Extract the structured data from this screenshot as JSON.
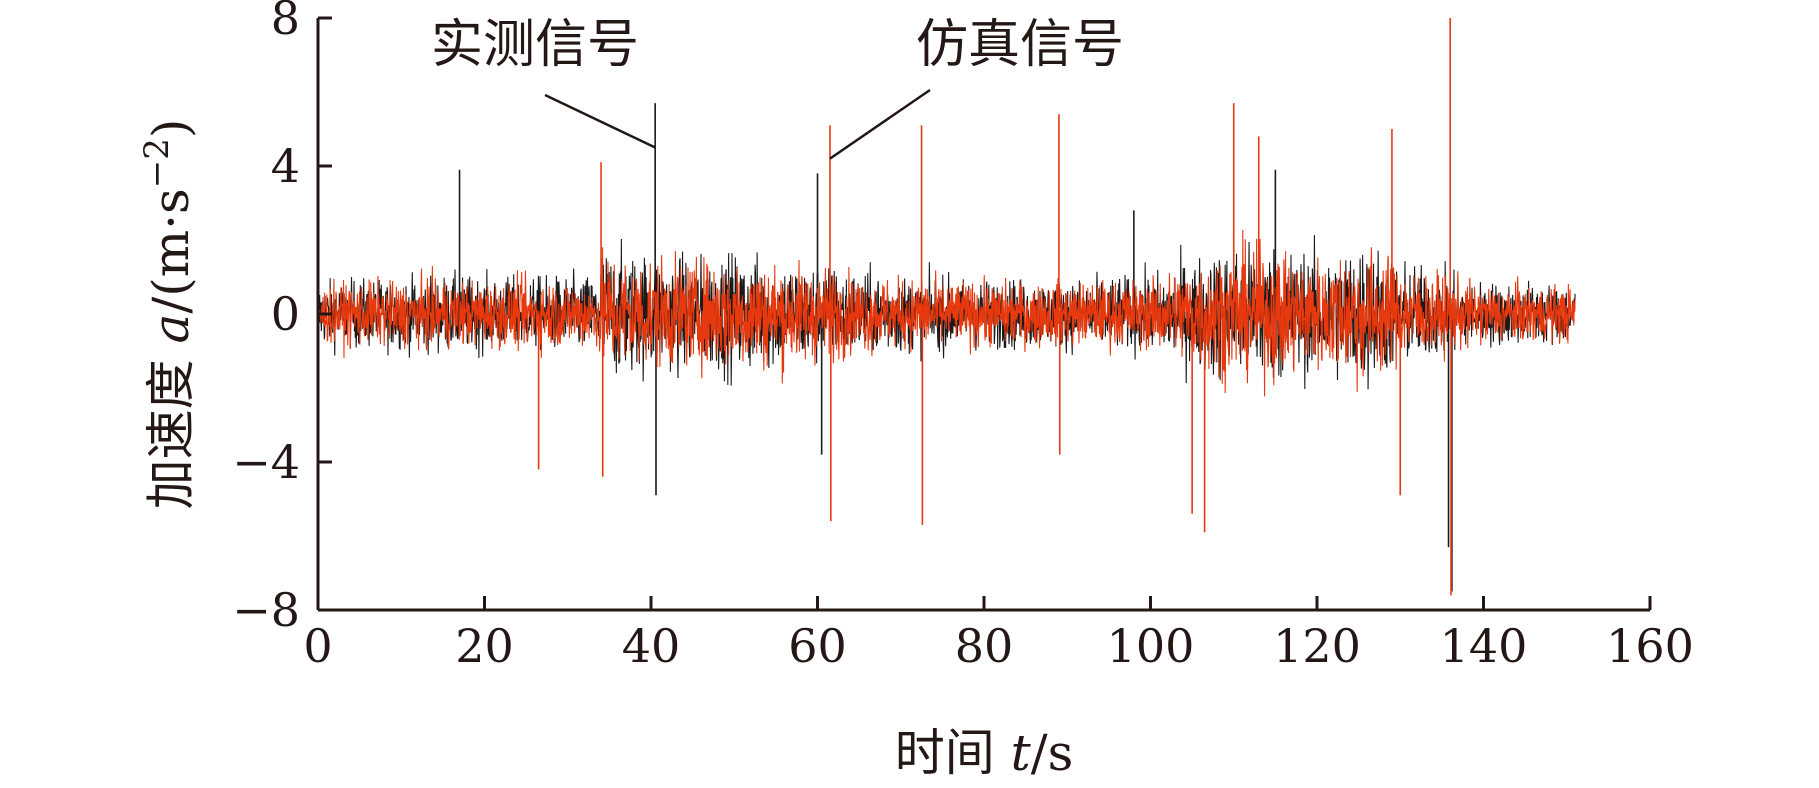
{
  "chart_data": {
    "type": "line",
    "xlabel": "时间 t/s",
    "ylabel": "加速度 a/(m·s⁻²)",
    "xlabel_parts": {
      "prefix": "时间 ",
      "var": "t",
      "suffix": "/s"
    },
    "ylabel_parts": {
      "prefix": "加速度 ",
      "var": "a",
      "suffix": "/(m·s",
      "exp": "−2",
      "close": ")"
    },
    "xlim": [
      0,
      160
    ],
    "ylim": [
      -8,
      8
    ],
    "x_ticks": [
      0,
      20,
      40,
      60,
      80,
      100,
      120,
      140,
      160
    ],
    "x_tick_labels": [
      "0",
      "20",
      "40",
      "60",
      "80",
      "100",
      "120",
      "140",
      "160"
    ],
    "y_ticks": [
      -8,
      -4,
      0,
      4,
      8
    ],
    "y_tick_labels": [
      "−8",
      "−4",
      "0",
      "4",
      "8"
    ],
    "grid": false,
    "series": [
      {
        "name": "实测信号",
        "color": "#1a1a1a",
        "x_range": [
          0,
          151
        ],
        "envelope": [
          {
            "x": 0,
            "a": 1.5
          },
          {
            "x": 5,
            "a": 1.6
          },
          {
            "x": 10,
            "a": 1.6
          },
          {
            "x": 15,
            "a": 1.8
          },
          {
            "x": 20,
            "a": 1.7
          },
          {
            "x": 25,
            "a": 1.7
          },
          {
            "x": 30,
            "a": 1.8
          },
          {
            "x": 33.5,
            "a": 1.8
          },
          {
            "x": 34,
            "a": 3.0
          },
          {
            "x": 40,
            "a": 2.8
          },
          {
            "x": 45,
            "a": 2.6
          },
          {
            "x": 50,
            "a": 2.8
          },
          {
            "x": 55,
            "a": 2.6
          },
          {
            "x": 60,
            "a": 2.4
          },
          {
            "x": 65,
            "a": 2.0
          },
          {
            "x": 70,
            "a": 1.8
          },
          {
            "x": 80,
            "a": 1.6
          },
          {
            "x": 90,
            "a": 1.6
          },
          {
            "x": 100,
            "a": 1.8
          },
          {
            "x": 105,
            "a": 2.6
          },
          {
            "x": 110,
            "a": 3.2
          },
          {
            "x": 115,
            "a": 3.2
          },
          {
            "x": 120,
            "a": 2.8
          },
          {
            "x": 126,
            "a": 3.4
          },
          {
            "x": 130,
            "a": 2.4
          },
          {
            "x": 135,
            "a": 2.0
          },
          {
            "x": 140,
            "a": 1.5
          },
          {
            "x": 151,
            "a": 1.4
          }
        ],
        "spikes": [
          {
            "x": 17,
            "y": 3.9
          },
          {
            "x": 40.5,
            "y": 5.7
          },
          {
            "x": 40.6,
            "y": -4.9
          },
          {
            "x": 60,
            "y": 3.8
          },
          {
            "x": 60.5,
            "y": -3.8
          },
          {
            "x": 98,
            "y": 2.8
          },
          {
            "x": 135.8,
            "y": -6.3
          },
          {
            "x": 136.2,
            "y": -7.5
          },
          {
            "x": 115,
            "y": 3.9
          }
        ]
      },
      {
        "name": "仿真信号",
        "color": "#e8380d",
        "x_range": [
          0,
          151
        ],
        "envelope": [
          {
            "x": 0,
            "a": 1.3
          },
          {
            "x": 5,
            "a": 1.5
          },
          {
            "x": 10,
            "a": 1.5
          },
          {
            "x": 15,
            "a": 1.6
          },
          {
            "x": 20,
            "a": 1.5
          },
          {
            "x": 25,
            "a": 1.6
          },
          {
            "x": 30,
            "a": 1.6
          },
          {
            "x": 33.5,
            "a": 1.6
          },
          {
            "x": 34,
            "a": 2.8
          },
          {
            "x": 40,
            "a": 2.6
          },
          {
            "x": 45,
            "a": 2.4
          },
          {
            "x": 50,
            "a": 2.6
          },
          {
            "x": 55,
            "a": 2.5
          },
          {
            "x": 60,
            "a": 2.2
          },
          {
            "x": 65,
            "a": 1.8
          },
          {
            "x": 70,
            "a": 1.6
          },
          {
            "x": 80,
            "a": 1.5
          },
          {
            "x": 90,
            "a": 1.5
          },
          {
            "x": 100,
            "a": 1.6
          },
          {
            "x": 105,
            "a": 2.4
          },
          {
            "x": 110,
            "a": 3.0
          },
          {
            "x": 115,
            "a": 3.0
          },
          {
            "x": 120,
            "a": 2.6
          },
          {
            "x": 126,
            "a": 3.2
          },
          {
            "x": 130,
            "a": 2.2
          },
          {
            "x": 135,
            "a": 1.8
          },
          {
            "x": 140,
            "a": 1.4
          },
          {
            "x": 151,
            "a": 1.3
          }
        ],
        "spikes": [
          {
            "x": 26.5,
            "y": -4.2
          },
          {
            "x": 34,
            "y": 4.1
          },
          {
            "x": 34.2,
            "y": -4.4
          },
          {
            "x": 61.5,
            "y": 5.1
          },
          {
            "x": 61.6,
            "y": -5.6
          },
          {
            "x": 72.5,
            "y": 5.1
          },
          {
            "x": 72.6,
            "y": -5.7
          },
          {
            "x": 89,
            "y": 5.4
          },
          {
            "x": 89.1,
            "y": -3.8
          },
          {
            "x": 105,
            "y": -5.4
          },
          {
            "x": 106.5,
            "y": -5.9
          },
          {
            "x": 110,
            "y": 5.7
          },
          {
            "x": 113,
            "y": 4.8
          },
          {
            "x": 129,
            "y": 5.0
          },
          {
            "x": 130,
            "y": -4.9
          },
          {
            "x": 136,
            "y": 8.0
          },
          {
            "x": 136.1,
            "y": -7.6
          }
        ]
      }
    ],
    "annotations": [
      {
        "text": "实测信号",
        "x": 40.5,
        "y": 4.5
      },
      {
        "text": "仿真信号",
        "x": 61.5,
        "y": 4.2
      }
    ]
  }
}
